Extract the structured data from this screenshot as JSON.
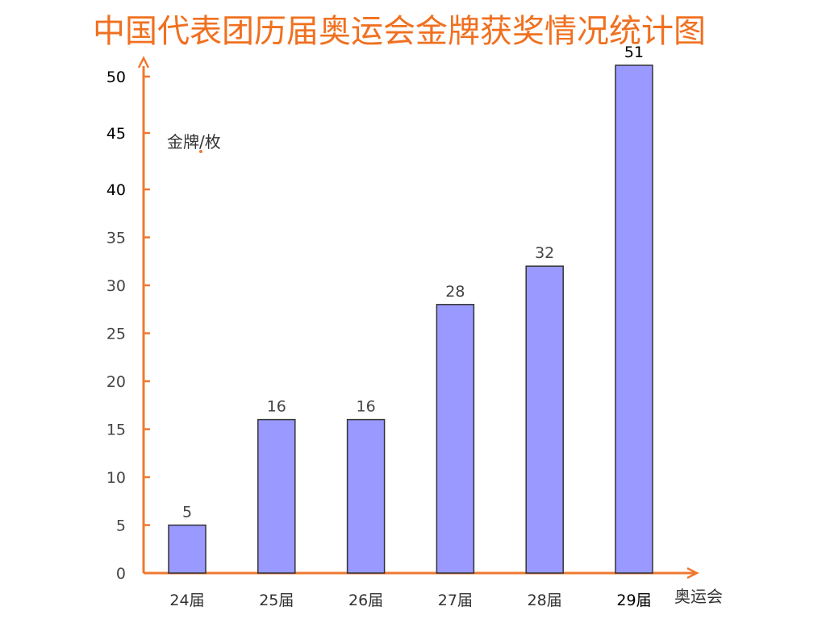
{
  "colors": {
    "title": "#f07020",
    "axis": "#f07830",
    "bar_fill": "#9999ff",
    "bar_stroke": "#333333"
  },
  "chart_data": {
    "type": "bar",
    "title": "中国代表团历届奥运会金牌获奖情况统计图",
    "ylabel": "金牌/枚",
    "xlabel": "奥运会",
    "categories": [
      "24届",
      "25届",
      "26届",
      "27届",
      "28届",
      "29届"
    ],
    "values": [
      5,
      16,
      16,
      28,
      32,
      51
    ],
    "data_labels": [
      "5",
      "16",
      "16",
      "28",
      "32",
      "51"
    ],
    "ylim": [
      0,
      51
    ],
    "yticks": [
      0,
      5,
      10,
      15,
      20,
      25,
      30,
      35,
      40,
      45,
      50
    ],
    "ytick_labels": [
      "0",
      "5",
      "10",
      "15",
      "20",
      "25",
      "30",
      "35",
      "40",
      "45",
      "50"
    ],
    "grid": false,
    "legend": "none"
  }
}
